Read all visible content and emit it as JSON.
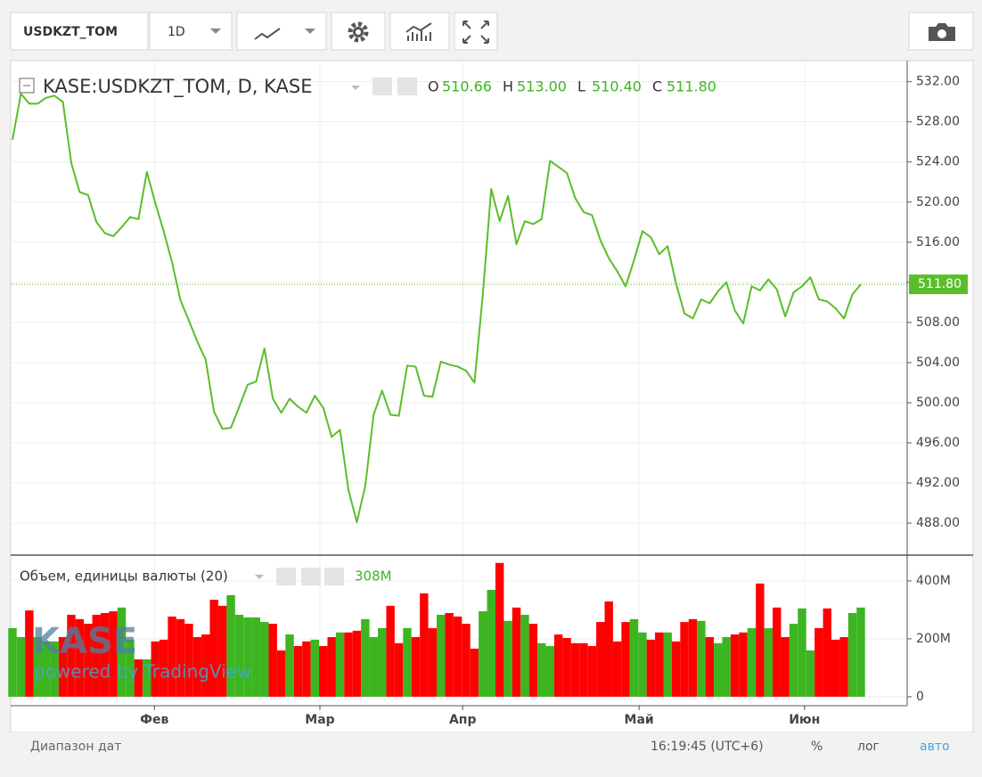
{
  "toolbar": {
    "symbol": "USDKZT_TOM",
    "interval": "1D"
  },
  "legend": {
    "symbol": "KASE:USDKZT_TOM, D, KASE",
    "items": [
      {
        "key": "O",
        "text": "510.66"
      },
      {
        "key": "H",
        "text": "513.00"
      },
      {
        "key": "L",
        "text": "510.40"
      },
      {
        "key": "C",
        "text": "511.80"
      }
    ]
  },
  "volume_legend": {
    "title": "Объем, единицы валюты (20)",
    "text": "308M"
  },
  "watermark": {
    "brand": "KASE",
    "powered": "powered by TradingView"
  },
  "footer": {
    "range": "Диапазон дат",
    "time": "16:19:45 (UTC+6)",
    "percent": "%",
    "log": "лог",
    "auto": "авто"
  },
  "chart_data": [
    {
      "type": "line",
      "color": "#5bbd2b",
      "xlim": [
        0,
        101
      ],
      "ylim": [
        484.9,
        534.1
      ],
      "yticks": [
        {
          "value": 488,
          "label": "488.00"
        },
        {
          "value": 492,
          "label": "492.00"
        },
        {
          "value": 496,
          "label": "496.00"
        },
        {
          "value": 500,
          "label": "500.00"
        },
        {
          "value": 504,
          "label": "504.00"
        },
        {
          "value": 508,
          "label": "508.00"
        },
        {
          "value": 512,
          "label": "512.00"
        },
        {
          "value": 516,
          "label": "516.00"
        },
        {
          "value": 520,
          "label": "520.00"
        },
        {
          "value": 524,
          "label": "524.00"
        },
        {
          "value": 528,
          "label": "528.00"
        },
        {
          "value": 532,
          "label": "532.00"
        }
      ],
      "grid": true,
      "last_price": 511.8,
      "last_price_label": "511.80",
      "values": [
        526.2,
        530.8,
        529.8,
        529.8,
        530.4,
        530.6,
        530.0,
        523.9,
        521.0,
        520.7,
        518.0,
        516.9,
        516.6,
        517.5,
        518.5,
        518.3,
        523.0,
        519.9,
        517.1,
        514.0,
        510.2,
        508.2,
        506.1,
        504.3,
        499.1,
        497.4,
        497.5,
        499.6,
        501.8,
        502.1,
        505.4,
        500.4,
        499.0,
        500.4,
        499.6,
        499.0,
        500.7,
        499.5,
        496.6,
        497.3,
        491.3,
        488.1,
        491.7,
        498.8,
        501.2,
        498.8,
        498.7,
        503.7,
        503.6,
        500.7,
        500.6,
        504.1,
        503.8,
        503.6,
        503.2,
        502.0,
        510.8,
        521.3,
        518.1,
        520.6,
        515.8,
        518.1,
        517.8,
        518.3,
        524.1,
        523.5,
        522.9,
        520.4,
        519.0,
        518.7,
        516.2,
        514.4,
        513.1,
        511.6,
        514.2,
        517.1,
        516.5,
        514.8,
        515.6,
        511.9,
        508.9,
        508.4,
        510.3,
        509.9,
        511.1,
        512.0,
        509.2,
        507.9,
        511.6,
        511.2,
        512.3,
        511.3,
        508.6,
        511.0,
        511.6,
        512.5,
        510.3,
        510.1,
        509.4,
        508.4,
        510.8,
        511.8
      ]
    },
    {
      "type": "bar",
      "up_color": "#3cb521",
      "down_color": "#ff0000",
      "xlim": [
        0,
        101
      ],
      "xticks": [
        {
          "value": 16.9,
          "label": "Фев"
        },
        {
          "value": 36.6,
          "label": "Мар"
        },
        {
          "value": 53.6,
          "label": "Апр"
        },
        {
          "value": 74.6,
          "label": "Май"
        },
        {
          "value": 94.3,
          "label": "Июн"
        }
      ],
      "ylim": [
        -31000000,
        489000000
      ],
      "yticks": [
        0,
        {
          "value": 200000000,
          "label": "200M"
        },
        {
          "value": 400000000,
          "label": "400M"
        }
      ],
      "values": [
        237000000,
        206000000,
        298000000,
        206000000,
        191000000,
        191000000,
        206000000,
        283000000,
        268000000,
        252000000,
        283000000,
        289000000,
        295000000,
        308000000,
        197000000,
        129000000,
        129000000,
        191000000,
        197000000,
        277000000,
        268000000,
        252000000,
        206000000,
        215000000,
        335000000,
        314000000,
        351000000,
        283000000,
        274000000,
        274000000,
        258000000,
        252000000,
        160000000,
        215000000,
        175000000,
        191000000,
        197000000,
        175000000,
        206000000,
        222000000,
        222000000,
        228000000,
        268000000,
        206000000,
        237000000,
        314000000,
        185000000,
        237000000,
        206000000,
        357000000,
        237000000,
        283000000,
        289000000,
        277000000,
        252000000,
        166000000,
        295000000,
        369000000,
        462000000,
        262000000,
        308000000,
        283000000,
        252000000,
        185000000,
        175000000,
        215000000,
        203000000,
        185000000,
        185000000,
        175000000,
        258000000,
        329000000,
        191000000,
        258000000,
        268000000,
        222000000,
        197000000,
        222000000,
        222000000,
        191000000,
        258000000,
        268000000,
        262000000,
        206000000,
        185000000,
        206000000,
        215000000,
        222000000,
        237000000,
        391000000,
        237000000,
        308000000,
        206000000,
        252000000,
        305000000,
        160000000,
        237000000,
        305000000,
        197000000,
        206000000,
        289000000,
        308000000
      ]
    }
  ]
}
